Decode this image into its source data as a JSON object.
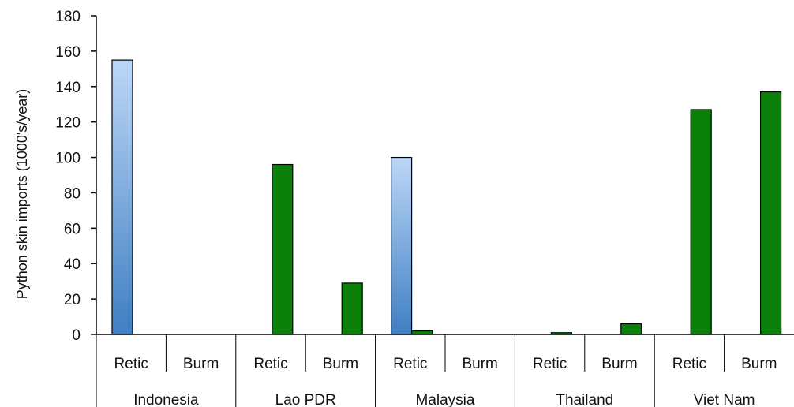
{
  "chart_data": {
    "type": "bar",
    "title": "",
    "xlabel": "",
    "ylabel": "Python skin imports (1000's/year)",
    "ylim": [
      0,
      180
    ],
    "yticks": [
      0,
      20,
      40,
      60,
      80,
      100,
      120,
      140,
      160,
      180
    ],
    "grid": false,
    "legend": "none",
    "groups": [
      {
        "country": "Indonesia",
        "subcategories": [
          {
            "label": "Retic",
            "a": 155,
            "b": 0
          },
          {
            "label": "Burm",
            "a": 0,
            "b": 0
          }
        ]
      },
      {
        "country": "Lao PDR",
        "subcategories": [
          {
            "label": "Retic",
            "a": 0,
            "b": 96
          },
          {
            "label": "Burm",
            "a": 0,
            "b": 29
          }
        ]
      },
      {
        "country": "Malaysia",
        "subcategories": [
          {
            "label": "Retic",
            "a": 100,
            "b": 2
          },
          {
            "label": "Burm",
            "a": 0,
            "b": 0
          }
        ]
      },
      {
        "country": "Thailand",
        "subcategories": [
          {
            "label": "Retic",
            "a": 0,
            "b": 1
          },
          {
            "label": "Burm",
            "a": 0,
            "b": 6
          }
        ]
      },
      {
        "country": "Viet Nam",
        "subcategories": [
          {
            "label": "Retic",
            "a": 0,
            "b": 127
          },
          {
            "label": "Burm",
            "a": 0,
            "b": 137
          }
        ]
      }
    ],
    "colors": {
      "a_top": "#bcd7f7",
      "a_bottom": "#3f7fc3",
      "b": "#0a800a",
      "stroke": "#000000"
    }
  }
}
